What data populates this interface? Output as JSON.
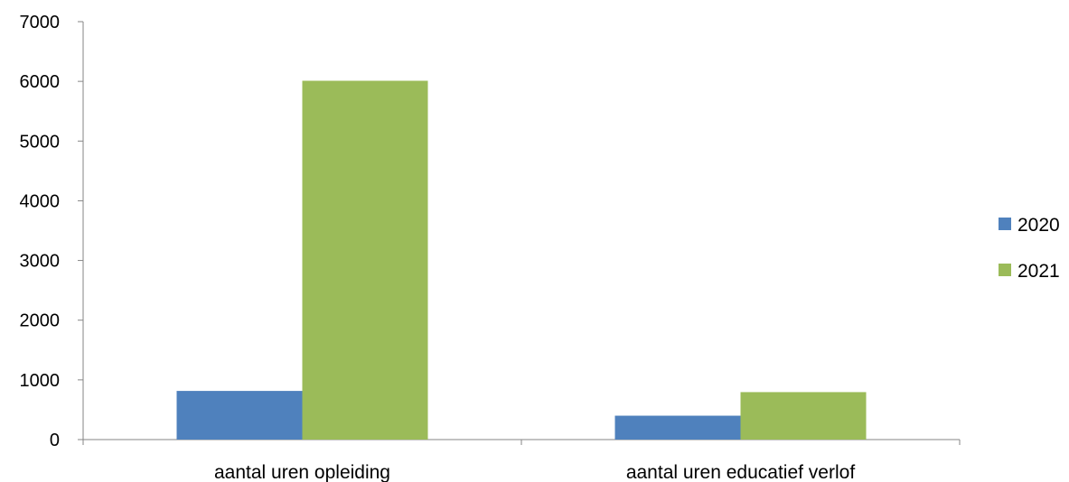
{
  "chart_data": {
    "type": "bar",
    "categories": [
      "aantal uren opleiding",
      "aantal uren educatief verlof"
    ],
    "series": [
      {
        "name": "2020",
        "values": [
          815,
          400
        ],
        "color": "#4f81bd"
      },
      {
        "name": "2021",
        "values": [
          6010,
          795
        ],
        "color": "#9bbb59"
      }
    ],
    "ylim": [
      0,
      7000
    ],
    "yticks": [
      0,
      1000,
      2000,
      3000,
      4000,
      5000,
      6000,
      7000
    ],
    "grid": false,
    "legend_position": "right",
    "title": "",
    "xlabel": "",
    "ylabel": ""
  }
}
